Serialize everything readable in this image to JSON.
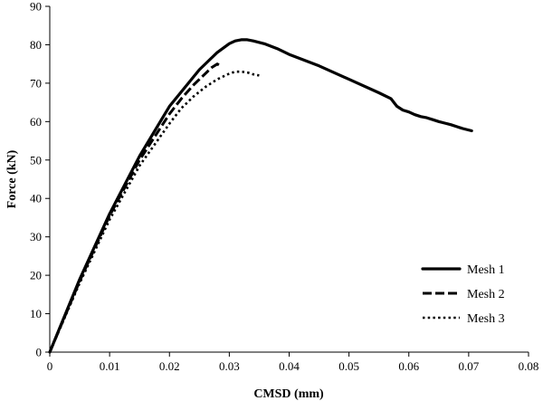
{
  "chart_data": {
    "type": "line",
    "xlabel": "CMSD (mm)",
    "ylabel": "Force (kN)",
    "xlim": [
      0,
      0.08
    ],
    "ylim": [
      0,
      90
    ],
    "xticks": [
      "0",
      "0.01",
      "0.02",
      "0.03",
      "0.04",
      "0.05",
      "0.06",
      "0.07",
      "0.08"
    ],
    "yticks": [
      "0",
      "10",
      "20",
      "30",
      "40",
      "50",
      "60",
      "70",
      "80",
      "90"
    ],
    "legend_position": "bottom-right",
    "grid": false,
    "series": [
      {
        "name": "Mesh 1",
        "style": "solid",
        "color": "#000000",
        "x": [
          0,
          0.005,
          0.01,
          0.015,
          0.02,
          0.025,
          0.028,
          0.03,
          0.031,
          0.032,
          0.033,
          0.034,
          0.036,
          0.038,
          0.04,
          0.045,
          0.05,
          0.055,
          0.057,
          0.058,
          0.059,
          0.06,
          0.061,
          0.062,
          0.063,
          0.064,
          0.065,
          0.066,
          0.067,
          0.068,
          0.069,
          0.0705
        ],
        "y": [
          0,
          19,
          36,
          51,
          64,
          73.5,
          78,
          80.3,
          81,
          81.3,
          81.3,
          81,
          80.2,
          79,
          77.5,
          74.5,
          71,
          67.5,
          66,
          64,
          63,
          62.5,
          61.8,
          61.3,
          61,
          60.5,
          60,
          59.6,
          59.2,
          58.7,
          58.2,
          57.6
        ]
      },
      {
        "name": "Mesh 2",
        "style": "dashed",
        "color": "#000000",
        "x": [
          0,
          0.005,
          0.01,
          0.015,
          0.02,
          0.022,
          0.024,
          0.026,
          0.027,
          0.028,
          0.0285
        ],
        "y": [
          0,
          18.5,
          35.5,
          50,
          62,
          66,
          69.5,
          72.5,
          74,
          75,
          74.5
        ]
      },
      {
        "name": "Mesh 3",
        "style": "dotted",
        "color": "#000000",
        "x": [
          0,
          0.005,
          0.01,
          0.015,
          0.02,
          0.022,
          0.024,
          0.026,
          0.028,
          0.03,
          0.031,
          0.032,
          0.033,
          0.034,
          0.035
        ],
        "y": [
          0,
          18,
          34.5,
          48.5,
          59.5,
          63.5,
          66.5,
          69,
          71,
          72.5,
          73,
          73,
          72.8,
          72.3,
          72
        ]
      }
    ]
  }
}
